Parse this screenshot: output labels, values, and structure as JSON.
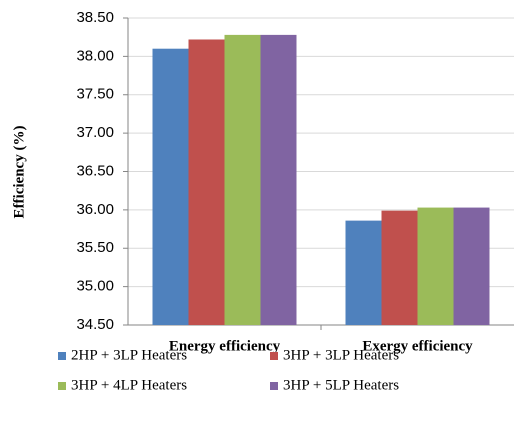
{
  "chart_data": {
    "type": "bar",
    "y_label": "Efficiency (%)",
    "categories": [
      "Energy efficiency",
      "Exergy efficiency"
    ],
    "series": [
      {
        "name": "2HP + 3LP Heaters",
        "color": "#4f81bd",
        "values": [
          38.1,
          35.86
        ]
      },
      {
        "name": "3HP + 3LP Heaters",
        "color": "#c0504d",
        "values": [
          38.22,
          35.99
        ]
      },
      {
        "name": "3HP + 4LP Heaters",
        "color": "#9bbb59",
        "values": [
          38.28,
          36.03
        ]
      },
      {
        "name": "3HP + 5LP Heaters",
        "color": "#8064a2",
        "values": [
          38.28,
          36.03
        ]
      }
    ],
    "ylim": [
      34.5,
      38.5
    ],
    "yticks": [
      {
        "value": 34.5,
        "label": "34.50"
      },
      {
        "value": 35,
        "label": "35.00"
      },
      {
        "value": 35.5,
        "label": "35.50"
      },
      {
        "value": 36,
        "label": "36.00"
      },
      {
        "value": 36.5,
        "label": "36.50"
      },
      {
        "value": 37,
        "label": "37.00"
      },
      {
        "value": 37.5,
        "label": "37.50"
      },
      {
        "value": 38,
        "label": "38.00"
      },
      {
        "value": 38.5,
        "label": "38.50"
      }
    ],
    "grid": true
  }
}
